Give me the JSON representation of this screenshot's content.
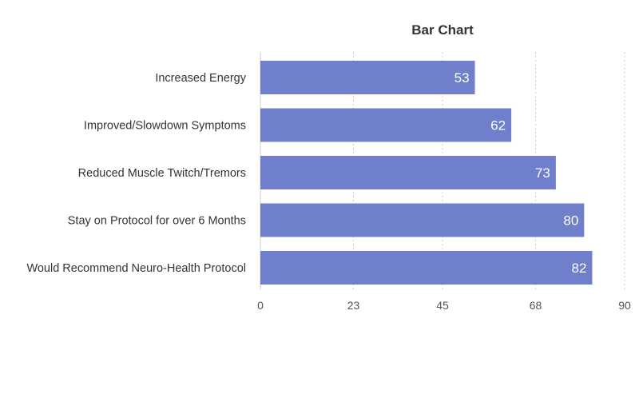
{
  "chart_data": {
    "type": "bar",
    "orientation": "horizontal",
    "title": "Bar Chart",
    "xlabel": "",
    "ylabel": "",
    "categories": [
      "Increased Energy",
      "Improved/Slowdown Symptoms",
      "Reduced Muscle Twitch/Tremors",
      "Stay on Protocol for over 6 Months",
      "Would Recommend Neuro-Health Protocol"
    ],
    "values": [
      53,
      62,
      73,
      80,
      82
    ],
    "xlim": [
      0,
      90
    ],
    "ticks": [
      0,
      23,
      45,
      68,
      90
    ],
    "tick_labels": [
      "0",
      "23",
      "45",
      "68",
      "90"
    ],
    "grid": true,
    "legend": "none",
    "bar_color": "#6f7fcc"
  }
}
